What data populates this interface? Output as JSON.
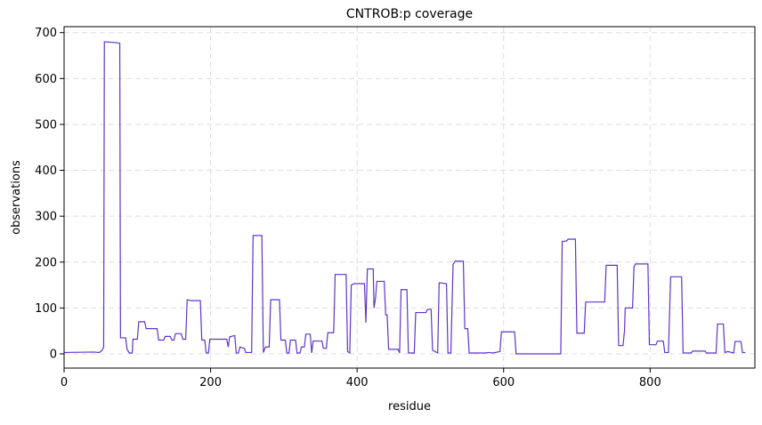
{
  "chart_data": {
    "type": "line",
    "title": "CNTROB:p coverage",
    "x_label": "residue",
    "y_label": "observations",
    "x": [
      0,
      40,
      48,
      52,
      54,
      55,
      65,
      72,
      76,
      77,
      84,
      86,
      89,
      93,
      94,
      100,
      102,
      110,
      112,
      127,
      129,
      136,
      138,
      145,
      147,
      150,
      152,
      160,
      162,
      166,
      168,
      173,
      186,
      188,
      192,
      194,
      197,
      199,
      222,
      224,
      226,
      233,
      235,
      238,
      240,
      246,
      248,
      256,
      258,
      270,
      272,
      275,
      280,
      282,
      294,
      296,
      302,
      304,
      307,
      309,
      316,
      318,
      322,
      324,
      328,
      330,
      336,
      338,
      340,
      352,
      354,
      358,
      360,
      368,
      370,
      385,
      387,
      390,
      392,
      396,
      410,
      412,
      414,
      422,
      423,
      425,
      427,
      437,
      439,
      441,
      443,
      456,
      458,
      460,
      468,
      470,
      478,
      480,
      494,
      496,
      501,
      503,
      510,
      512,
      522,
      524,
      528,
      531,
      534,
      545,
      547,
      551,
      553,
      575,
      580,
      585,
      595,
      597,
      615,
      617,
      678,
      680,
      686,
      688,
      698,
      700,
      710,
      712,
      738,
      740,
      755,
      757,
      763,
      765,
      766,
      776,
      778,
      780,
      797,
      799,
      808,
      810,
      818,
      820,
      825,
      828,
      843,
      845,
      856,
      858,
      875,
      877,
      890,
      892,
      900,
      902,
      906,
      914,
      916,
      924,
      926,
      930
    ],
    "series": [
      {
        "name": "coverage",
        "color": "#5f35c9",
        "values": [
          3,
          4,
          3,
          8,
          15,
          680,
          679,
          678,
          677,
          35,
          35,
          10,
          2,
          2,
          32,
          32,
          70,
          70,
          55,
          55,
          30,
          30,
          38,
          38,
          30,
          30,
          44,
          44,
          32,
          32,
          118,
          116,
          116,
          30,
          30,
          2,
          2,
          32,
          32,
          15,
          37,
          40,
          2,
          2,
          15,
          12,
          3,
          3,
          258,
          258,
          3,
          15,
          15,
          118,
          118,
          30,
          30,
          2,
          2,
          30,
          30,
          2,
          2,
          15,
          15,
          43,
          43,
          2,
          28,
          28,
          12,
          12,
          46,
          46,
          173,
          173,
          5,
          2,
          150,
          153,
          153,
          68,
          185,
          185,
          100,
          120,
          158,
          158,
          85,
          85,
          10,
          10,
          2,
          140,
          140,
          2,
          2,
          90,
          90,
          97,
          97,
          8,
          2,
          155,
          153,
          2,
          2,
          195,
          202,
          202,
          55,
          55,
          2,
          2,
          3,
          2,
          5,
          48,
          48,
          0,
          0,
          245,
          246,
          250,
          250,
          45,
          45,
          113,
          113,
          193,
          193,
          18,
          18,
          50,
          100,
          100,
          190,
          196,
          196,
          20,
          20,
          28,
          28,
          3,
          3,
          168,
          168,
          2,
          2,
          6,
          6,
          2,
          2,
          65,
          65,
          3,
          5,
          2,
          27,
          27,
          3,
          3
        ]
      }
    ],
    "xlim": [
      0,
      943
    ],
    "ylim": [
      -31,
      713
    ],
    "xticks": [
      0,
      200,
      400,
      600,
      800
    ],
    "yticks": [
      0,
      100,
      200,
      300,
      400,
      500,
      600,
      700
    ],
    "grid": true
  }
}
